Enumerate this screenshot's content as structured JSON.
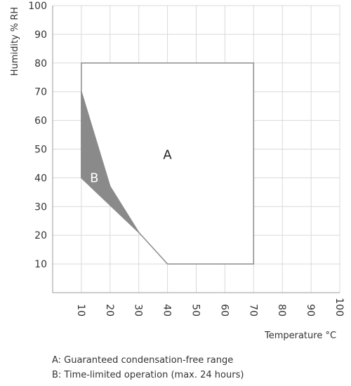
{
  "chart_data": {
    "type": "area",
    "xlabel": "Temperature °C",
    "ylabel": "Humidity % RH",
    "xlim": [
      0,
      100
    ],
    "ylim": [
      0,
      100
    ],
    "x_ticks": [
      10,
      20,
      30,
      40,
      50,
      60,
      70,
      80,
      90,
      100
    ],
    "y_ticks": [
      10,
      20,
      30,
      40,
      50,
      60,
      70,
      80,
      90,
      100
    ],
    "grid": true,
    "regions": [
      {
        "label": "A",
        "fill": "#ffffff",
        "stroke": "#8c8c8c",
        "points": [
          [
            10,
            80
          ],
          [
            70,
            80
          ],
          [
            70,
            10
          ],
          [
            40,
            10
          ],
          [
            30,
            21
          ],
          [
            10,
            40
          ]
        ]
      },
      {
        "label": "B",
        "fill": "#8a8a8a",
        "stroke": "#8a8a8a",
        "points": [
          [
            10,
            70
          ],
          [
            20,
            37
          ],
          [
            30,
            21
          ],
          [
            10,
            40
          ]
        ]
      }
    ],
    "region_label_positions": [
      {
        "label": "A",
        "x": 40,
        "y": 48
      },
      {
        "label": "B",
        "x": 14.5,
        "y": 40
      }
    ],
    "legend": [
      "A: Guaranteed condensation-free range",
      "B: Time-limited operation (max. 24 hours)"
    ],
    "colors": {
      "grid": "#d9d9d9",
      "axis": "#999999",
      "region_a_label": "#222222",
      "region_b_label": "#ffffff"
    }
  }
}
